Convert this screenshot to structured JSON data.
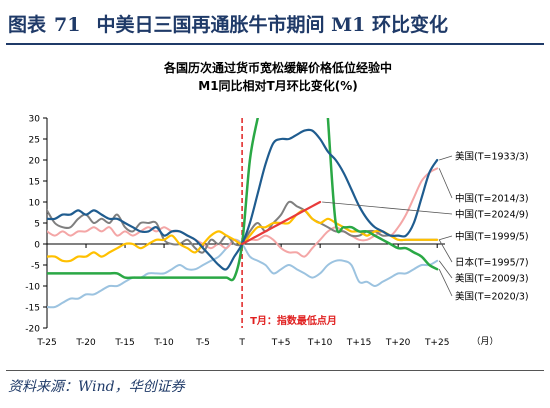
{
  "header": {
    "label": "图表",
    "number": "71",
    "title": "中美日三国再通胀牛市期间 M1 环比变化"
  },
  "source": "资料来源：Wind，华创证券",
  "chart_data": {
    "type": "line",
    "title": "各国历次通过货币宽松缓解价格低位经验中",
    "subtitle": "M1同比相对T月环比变化(%)",
    "xlabel": "（月）",
    "ylabel": "",
    "x": [
      -25,
      -24,
      -23,
      -22,
      -21,
      -20,
      -19,
      -18,
      -17,
      -16,
      -15,
      -14,
      -13,
      -12,
      -11,
      -10,
      -9,
      -8,
      -7,
      -6,
      -5,
      -4,
      -3,
      -2,
      -1,
      0,
      1,
      2,
      3,
      4,
      5,
      6,
      7,
      8,
      9,
      10,
      11,
      12,
      13,
      14,
      15,
      16,
      17,
      18,
      19,
      20,
      21,
      22,
      23,
      24,
      25
    ],
    "xticks": [
      -25,
      -20,
      -15,
      -10,
      -5,
      0,
      5,
      10,
      15,
      20,
      25
    ],
    "xticklabels": [
      "T-25",
      "T-20",
      "T-15",
      "T-10",
      "T-5",
      "T",
      "T+5",
      "T+10",
      "T+15",
      "T+20",
      "T+25"
    ],
    "yticks": [
      -20,
      -15,
      -10,
      -5,
      0,
      5,
      10,
      15,
      20,
      25,
      30
    ],
    "ylim": [
      -20,
      30
    ],
    "xlim": [
      -25,
      26
    ],
    "grid": false,
    "vline": {
      "x": 0,
      "label": "T月：指数最低点月",
      "color": "#e02020"
    },
    "series": [
      {
        "name": "美国(T=1933/3)",
        "color": "#1f5c8f",
        "width": 2.2,
        "values": [
          6,
          6,
          7,
          7,
          8,
          7,
          8,
          7,
          6,
          6,
          5,
          4,
          3,
          3,
          4,
          2,
          3,
          3,
          2,
          1,
          -1,
          -3,
          -5,
          -6,
          -3,
          0,
          5,
          12,
          19,
          24,
          25,
          25,
          26,
          27,
          27,
          25,
          22,
          20,
          17,
          13,
          9,
          6,
          4,
          3,
          2,
          2,
          2,
          5,
          11,
          17,
          20
        ]
      },
      {
        "name": "中国(T=2014/3)",
        "color": "#f4a6a6",
        "width": 2,
        "values": [
          3,
          2,
          3,
          2,
          3,
          3,
          4,
          3,
          4,
          2,
          3,
          2,
          3,
          4,
          3,
          4,
          3,
          3,
          2,
          1,
          0,
          -1,
          0,
          -1,
          1,
          0,
          1,
          1,
          2,
          1,
          -1,
          -2,
          -2,
          -3,
          -1,
          1,
          3,
          4,
          3,
          2,
          1,
          1,
          2,
          3,
          2,
          4,
          7,
          11,
          15,
          17,
          18
        ]
      },
      {
        "name": "中国(T=2024/9)",
        "color": "#e83a3a",
        "width": 2.2,
        "values": [
          null,
          null,
          null,
          null,
          null,
          null,
          null,
          null,
          null,
          null,
          null,
          null,
          null,
          null,
          null,
          null,
          null,
          null,
          null,
          null,
          null,
          null,
          null,
          null,
          null,
          0,
          1,
          2,
          3,
          4,
          5,
          6,
          7,
          8,
          9,
          10,
          null,
          null,
          null,
          null,
          null,
          null,
          null,
          null,
          null,
          null,
          null,
          null,
          null,
          null,
          null
        ]
      },
      {
        "name": "中国(T=1999/5)",
        "color": "#7f7f7f",
        "width": 2,
        "values": [
          8,
          5,
          4,
          4,
          6,
          7,
          5,
          6,
          5,
          7,
          4,
          3,
          5,
          5,
          5,
          1,
          0,
          0,
          1,
          -1,
          -2,
          1,
          0,
          2,
          0,
          0,
          3,
          5,
          3,
          5,
          7,
          10,
          9,
          8,
          6,
          5,
          4,
          3,
          3,
          2,
          2,
          3,
          3,
          2,
          2,
          1,
          1,
          1,
          1,
          1,
          1
        ]
      },
      {
        "name": "日本(T=1995/7)",
        "color": "#ffc000",
        "width": 2.2,
        "values": [
          -3,
          -3,
          -4,
          -4,
          -3,
          -3,
          -2,
          -3,
          -2,
          -1,
          0,
          0,
          -1,
          0,
          1,
          1,
          2,
          0,
          -1,
          -2,
          0,
          2,
          3,
          2,
          1,
          0,
          2,
          4,
          4,
          5,
          5,
          5,
          7,
          8,
          6,
          5,
          6,
          5,
          4,
          3,
          3,
          2,
          3,
          3,
          2,
          1,
          1,
          1,
          1,
          1,
          1
        ]
      },
      {
        "name": "美国(T=2009/3)",
        "color": "#9cc3e0",
        "width": 2,
        "values": [
          -15,
          -15,
          -14,
          -13,
          -13,
          -12,
          -12,
          -11,
          -10,
          -10,
          -9,
          -8,
          -8,
          -7,
          -7,
          -7,
          -6,
          -5,
          -6,
          -6,
          -5,
          -4,
          -3,
          -1,
          1,
          0,
          -3,
          -4,
          -5,
          -7,
          -6,
          -5,
          -6,
          -7,
          -8,
          -7,
          -5,
          -4,
          -4,
          -5,
          -9,
          -9,
          -10,
          -9,
          -8,
          -7,
          -7,
          -6,
          -5,
          -5,
          -4
        ]
      },
      {
        "name": "美国(T=2020/3)",
        "color": "#2aa845",
        "width": 2.5,
        "values": [
          -7,
          -7,
          -7,
          -7,
          -7,
          -7,
          -7,
          -7,
          -7,
          -7,
          -8,
          -8,
          -8,
          -8,
          -8,
          -8,
          -8,
          -8,
          -8,
          -8,
          -8,
          -8,
          -8,
          -8,
          -8,
          0,
          20,
          30,
          null,
          null,
          null,
          null,
          null,
          null,
          null,
          null,
          30,
          5,
          4,
          4,
          3,
          3,
          2,
          1,
          0,
          -1,
          -1,
          -2,
          -3,
          -5,
          -6
        ]
      }
    ],
    "legend_position": "right"
  }
}
